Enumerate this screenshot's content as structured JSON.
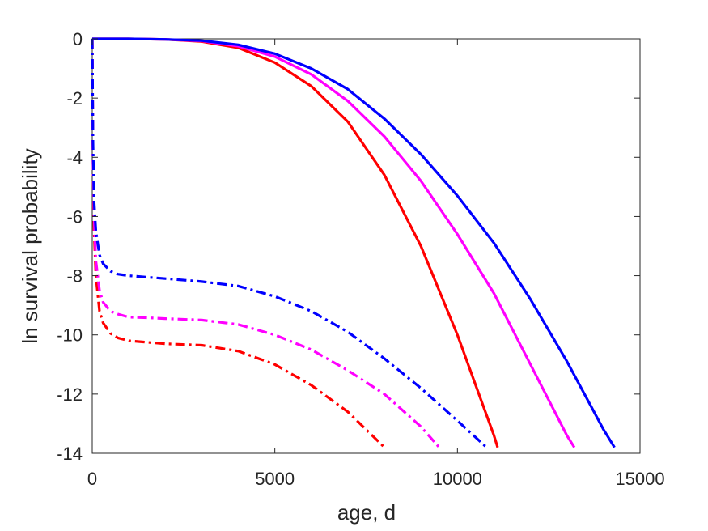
{
  "chart_data": {
    "type": "line",
    "title": "",
    "xlabel": "age, d",
    "ylabel": "ln survival probability",
    "xlim": [
      0,
      15000
    ],
    "ylim": [
      -14,
      0
    ],
    "xticks": [
      0,
      5000,
      10000,
      15000
    ],
    "yticks": [
      0,
      -2,
      -4,
      -6,
      -8,
      -10,
      -12,
      -14
    ],
    "xtick_labels": [
      "0",
      "5000",
      "10000",
      "15000"
    ],
    "ytick_labels": [
      "0",
      "-2",
      "-4",
      "-6",
      "-8",
      "-10",
      "-12",
      "-14"
    ],
    "grid": false,
    "legend": "none",
    "series": [
      {
        "color": "#ff0000",
        "style": "solid",
        "x": [
          0,
          1000,
          2000,
          3000,
          4000,
          5000,
          6000,
          7000,
          8000,
          9000,
          10000,
          10500,
          11000,
          11100
        ],
        "y": [
          0,
          0,
          -0.02,
          -0.09,
          -0.3,
          -0.8,
          -1.6,
          -2.8,
          -4.6,
          -7.0,
          -10.0,
          -11.7,
          -13.4,
          -13.8
        ]
      },
      {
        "color": "#ff00ff",
        "style": "solid",
        "x": [
          0,
          1000,
          2000,
          3000,
          4000,
          5000,
          6000,
          7000,
          8000,
          9000,
          10000,
          11000,
          12000,
          13000,
          13200
        ],
        "y": [
          0,
          0,
          -0.02,
          -0.07,
          -0.25,
          -0.6,
          -1.2,
          -2.1,
          -3.3,
          -4.8,
          -6.6,
          -8.6,
          -11.0,
          -13.4,
          -13.8
        ]
      },
      {
        "color": "#0000ff",
        "style": "solid",
        "x": [
          0,
          1000,
          2000,
          3000,
          4000,
          5000,
          6000,
          7000,
          8000,
          9000,
          10000,
          11000,
          12000,
          13000,
          14000,
          14300
        ],
        "y": [
          0,
          0,
          -0.02,
          -0.06,
          -0.2,
          -0.5,
          -1.0,
          -1.7,
          -2.7,
          -3.9,
          -5.3,
          -6.9,
          -8.8,
          -10.9,
          -13.2,
          -13.8
        ]
      },
      {
        "color": "#ff0000",
        "style": "dashdot",
        "x": [
          0,
          20,
          50,
          100,
          200,
          300,
          500,
          700,
          1000,
          1500,
          2000,
          3000,
          4000,
          5000,
          6000,
          7000,
          7500,
          8000
        ],
        "y": [
          0,
          -4.0,
          -6.5,
          -8.0,
          -9.2,
          -9.6,
          -9.95,
          -10.1,
          -10.2,
          -10.25,
          -10.3,
          -10.35,
          -10.55,
          -11.0,
          -11.7,
          -12.6,
          -13.2,
          -13.8
        ]
      },
      {
        "color": "#ff00ff",
        "style": "dashdot",
        "x": [
          0,
          20,
          50,
          100,
          200,
          300,
          500,
          700,
          1000,
          1500,
          2000,
          3000,
          4000,
          5000,
          6000,
          7000,
          8000,
          9000,
          9500
        ],
        "y": [
          0,
          -4.0,
          -6.0,
          -7.5,
          -8.5,
          -8.9,
          -9.2,
          -9.3,
          -9.4,
          -9.42,
          -9.45,
          -9.5,
          -9.65,
          -10.0,
          -10.5,
          -11.2,
          -12.0,
          -13.1,
          -13.8
        ]
      },
      {
        "color": "#0000ff",
        "style": "dashdot",
        "x": [
          0,
          20,
          50,
          100,
          200,
          300,
          500,
          700,
          1000,
          1500,
          2000,
          3000,
          4000,
          5000,
          6000,
          7000,
          8000,
          9000,
          10000,
          10800
        ],
        "y": [
          0,
          -3.5,
          -5.5,
          -6.5,
          -7.3,
          -7.6,
          -7.85,
          -7.95,
          -8.0,
          -8.05,
          -8.1,
          -8.2,
          -8.35,
          -8.7,
          -9.2,
          -9.9,
          -10.8,
          -11.8,
          -12.9,
          -13.8
        ]
      }
    ]
  }
}
